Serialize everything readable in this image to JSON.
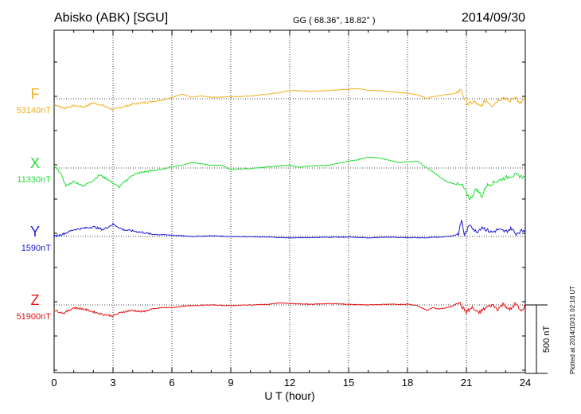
{
  "header": {
    "station": "Abisko (ABK)  [SGU]",
    "coords": "GG ( 68.36°,  18.82° )",
    "date": "2014/09/30"
  },
  "footer": {
    "xlabel": "U T (hour)",
    "plotted": "Plotted at 2014/10/31 02:18 UT"
  },
  "scale_bar": {
    "label": "500 nT",
    "nT": 500
  },
  "chart_data": {
    "type": "line",
    "xlabel": "U T (hour)",
    "xlim": [
      0,
      24
    ],
    "xticks": [
      0,
      3,
      6,
      9,
      12,
      15,
      18,
      21,
      24
    ],
    "scale_nT": 500,
    "grid": true,
    "series": [
      {
        "name": "F",
        "baseline_label": "53140nT",
        "baseline_nT": 53140,
        "color": "#f0b020",
        "x": [
          0,
          0.5,
          1,
          1.5,
          2,
          2.5,
          3,
          3.5,
          4,
          4.5,
          5,
          5.5,
          6,
          6.5,
          7,
          7.5,
          8,
          9,
          10,
          11,
          11.5,
          12,
          13,
          14,
          15,
          15.5,
          16,
          16.5,
          17,
          17.5,
          18,
          18.5,
          19,
          19.2,
          19.5,
          20,
          20.5,
          20.7,
          20.9,
          21.1,
          21.4,
          21.7,
          22,
          22.3,
          22.6,
          22.9,
          23.2,
          23.5,
          23.7,
          24
        ],
        "y": [
          53100,
          53070,
          53090,
          53080,
          53110,
          53090,
          53060,
          53080,
          53100,
          53110,
          53120,
          53130,
          53150,
          53175,
          53150,
          53160,
          53150,
          53155,
          53160,
          53175,
          53185,
          53200,
          53195,
          53200,
          53210,
          53215,
          53200,
          53200,
          53195,
          53185,
          53180,
          53170,
          53140,
          53155,
          53160,
          53170,
          53180,
          53210,
          53140,
          53100,
          53120,
          53080,
          53130,
          53090,
          53130,
          53150,
          53120,
          53160,
          53100,
          53140
        ]
      },
      {
        "name": "X",
        "baseline_label": "11330nT",
        "baseline_nT": 11330,
        "color": "#22dd33",
        "x": [
          0,
          0.3,
          0.6,
          1,
          1.5,
          2,
          2.3,
          2.7,
          3,
          3.3,
          3.6,
          4,
          4.5,
          5,
          5.5,
          6,
          6.5,
          7,
          7.5,
          8,
          8.5,
          9,
          10,
          11,
          11.5,
          12,
          12.5,
          13,
          14,
          15,
          15.5,
          16,
          16.5,
          17,
          17.5,
          18,
          18.5,
          19,
          19.5,
          20,
          20.5,
          20.8,
          21,
          21.2,
          21.5,
          21.8,
          22,
          22.5,
          23,
          23.5,
          24
        ],
        "y": [
          11340,
          11300,
          11200,
          11230,
          11200,
          11240,
          11280,
          11250,
          11220,
          11190,
          11230,
          11280,
          11300,
          11310,
          11320,
          11340,
          11350,
          11370,
          11360,
          11350,
          11350,
          11320,
          11325,
          11340,
          11345,
          11350,
          11335,
          11345,
          11350,
          11380,
          11390,
          11410,
          11405,
          11390,
          11370,
          11375,
          11380,
          11330,
          11280,
          11230,
          11210,
          11200,
          11150,
          11100,
          11180,
          11120,
          11200,
          11230,
          11260,
          11280,
          11260
        ]
      },
      {
        "name": "Y",
        "baseline_label": "1590nT",
        "baseline_nT": 1590,
        "color": "#1a1ad6",
        "x": [
          0,
          0.5,
          1,
          1.5,
          2,
          2.5,
          3,
          3.5,
          4,
          4.5,
          5,
          6,
          7,
          8,
          9,
          10,
          11,
          12,
          13,
          14,
          15,
          16,
          17,
          18,
          19,
          19.5,
          20,
          20.3,
          20.6,
          20.75,
          20.9,
          21.2,
          21.5,
          21.8,
          22,
          22.3,
          22.6,
          23,
          23.3,
          23.5,
          23.8,
          24
        ],
        "y": [
          1590,
          1610,
          1640,
          1650,
          1660,
          1640,
          1680,
          1640,
          1630,
          1620,
          1605,
          1600,
          1590,
          1595,
          1590,
          1588,
          1585,
          1580,
          1582,
          1585,
          1585,
          1580,
          1585,
          1582,
          1580,
          1585,
          1590,
          1595,
          1610,
          1710,
          1600,
          1680,
          1620,
          1660,
          1640,
          1620,
          1640,
          1625,
          1650,
          1610,
          1630,
          1640
        ]
      },
      {
        "name": "Z",
        "baseline_label": "51900nT",
        "baseline_nT": 51900,
        "color": "#e81010",
        "x": [
          0,
          0.5,
          1,
          1.5,
          2,
          2.5,
          3,
          3.5,
          4,
          4.5,
          5,
          5.5,
          6,
          6.5,
          7,
          8,
          9,
          10,
          11,
          11.5,
          12,
          13,
          14,
          15,
          16,
          17,
          18,
          18.5,
          19,
          19.3,
          19.6,
          20,
          20.3,
          20.6,
          20.8,
          21,
          21.3,
          21.6,
          22,
          22.3,
          22.6,
          22.9,
          23.2,
          23.5,
          23.8,
          24
        ],
        "y": [
          51860,
          51840,
          51880,
          51870,
          51850,
          51830,
          51820,
          51850,
          51860,
          51850,
          51870,
          51880,
          51880,
          51890,
          51895,
          51900,
          51895,
          51900,
          51905,
          51915,
          51910,
          51905,
          51910,
          51905,
          51900,
          51905,
          51905,
          51895,
          51860,
          51880,
          51870,
          51880,
          51890,
          51925,
          51880,
          51850,
          51880,
          51840,
          51880,
          51900,
          51870,
          51910,
          51860,
          51910,
          51850,
          51900
        ]
      }
    ]
  }
}
